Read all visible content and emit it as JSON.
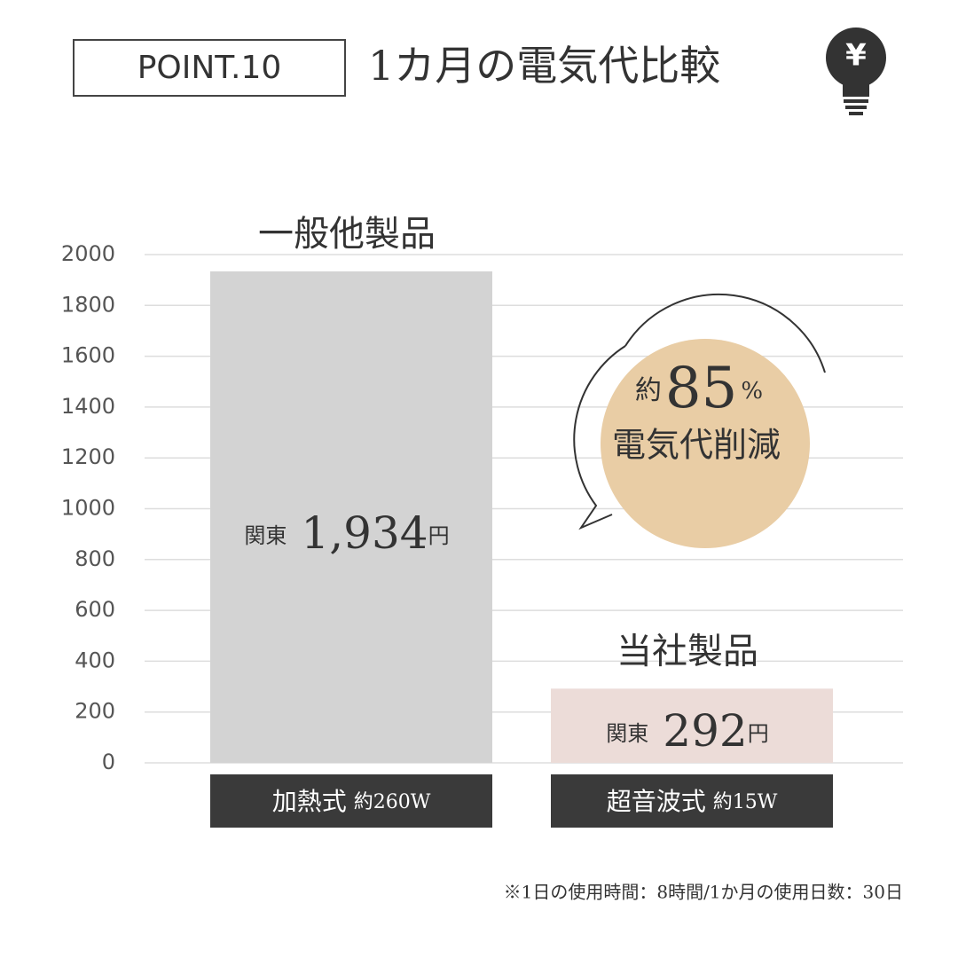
{
  "header": {
    "point": "POINT.10",
    "title": "1カ月の電気代比較"
  },
  "chart_data": {
    "type": "bar",
    "categories": [
      "一般他製品",
      "当社製品"
    ],
    "values": [
      1934,
      292
    ],
    "value_labels": [
      "1,934",
      "292"
    ],
    "region": "関東",
    "unit": "円",
    "colors": [
      "#d3d3d3",
      "#ecdcd8"
    ],
    "methods": [
      "加熱式",
      "超音波式"
    ],
    "wattages": [
      "約260W",
      "約15W"
    ],
    "ylim": [
      0,
      2000
    ],
    "yticks": [
      0,
      200,
      400,
      600,
      800,
      1000,
      1200,
      1400,
      1600,
      1800,
      2000
    ],
    "grid": true
  },
  "callout": {
    "prefix": "約",
    "value": 85,
    "unit": "%",
    "text": "電気代削減"
  },
  "footnote": "※1日の使用時間：8時間/1か月の使用日数：30日"
}
